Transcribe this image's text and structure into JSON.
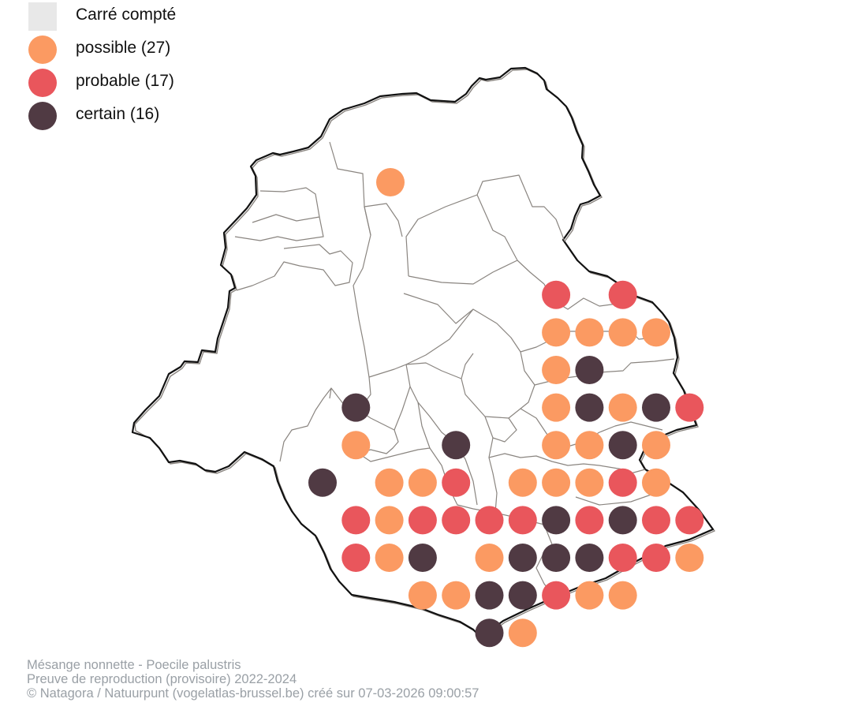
{
  "colors": {
    "counted_square": "#e8e8e8",
    "possible": "#fb9a62",
    "probable": "#e9565c",
    "certain": "#503a43",
    "border": "#111111",
    "commune_lines": "#8a8580"
  },
  "legend": [
    {
      "key": "counted",
      "label": "Carré compté",
      "shape": "square",
      "color": "#e8e8e8"
    },
    {
      "key": "possible",
      "label": "possible (27)",
      "shape": "circle",
      "color": "#fb9a62"
    },
    {
      "key": "probable",
      "label": "probable (17)",
      "shape": "circle",
      "color": "#e9565c"
    },
    {
      "key": "certain",
      "label": "certain (16)",
      "shape": "circle",
      "color": "#503a43"
    }
  ],
  "caption": {
    "species": "Mésange nonnette - Poecile palustris",
    "subtitle": "Preuve de reproduction (provisoire) 2022-2024",
    "credit": "© Natagora / Natuurpunt (vogelatlas-brussel.be) créé sur 07-03-2026 09:00:57"
  },
  "grid_records": [
    {
      "row": 0,
      "col": 2,
      "status": "possible"
    },
    {
      "row": 3,
      "col": 7,
      "status": "probable"
    },
    {
      "row": 3,
      "col": 9,
      "status": "probable"
    },
    {
      "row": 4,
      "col": 7,
      "status": "possible"
    },
    {
      "row": 4,
      "col": 8,
      "status": "possible"
    },
    {
      "row": 4,
      "col": 9,
      "status": "possible"
    },
    {
      "row": 4,
      "col": 10,
      "status": "possible"
    },
    {
      "row": 5,
      "col": 7,
      "status": "possible"
    },
    {
      "row": 5,
      "col": 8,
      "status": "certain"
    },
    {
      "row": 6,
      "col": 1,
      "status": "certain"
    },
    {
      "row": 6,
      "col": 7,
      "status": "possible"
    },
    {
      "row": 6,
      "col": 8,
      "status": "certain"
    },
    {
      "row": 6,
      "col": 9,
      "status": "possible"
    },
    {
      "row": 6,
      "col": 10,
      "status": "certain"
    },
    {
      "row": 6,
      "col": 11,
      "status": "probable"
    },
    {
      "row": 7,
      "col": 1,
      "status": "possible"
    },
    {
      "row": 7,
      "col": 4,
      "status": "certain"
    },
    {
      "row": 7,
      "col": 7,
      "status": "possible"
    },
    {
      "row": 7,
      "col": 8,
      "status": "possible"
    },
    {
      "row": 7,
      "col": 9,
      "status": "certain"
    },
    {
      "row": 7,
      "col": 10,
      "status": "possible"
    },
    {
      "row": 8,
      "col": 0,
      "status": "certain"
    },
    {
      "row": 8,
      "col": 2,
      "status": "possible"
    },
    {
      "row": 8,
      "col": 3,
      "status": "possible"
    },
    {
      "row": 8,
      "col": 4,
      "status": "probable"
    },
    {
      "row": 8,
      "col": 6,
      "status": "possible"
    },
    {
      "row": 8,
      "col": 7,
      "status": "possible"
    },
    {
      "row": 8,
      "col": 8,
      "status": "possible"
    },
    {
      "row": 8,
      "col": 9,
      "status": "probable"
    },
    {
      "row": 8,
      "col": 10,
      "status": "possible"
    },
    {
      "row": 9,
      "col": 1,
      "status": "probable"
    },
    {
      "row": 9,
      "col": 2,
      "status": "possible"
    },
    {
      "row": 9,
      "col": 3,
      "status": "probable"
    },
    {
      "row": 9,
      "col": 4,
      "status": "probable"
    },
    {
      "row": 9,
      "col": 5,
      "status": "probable"
    },
    {
      "row": 9,
      "col": 6,
      "status": "probable"
    },
    {
      "row": 9,
      "col": 7,
      "status": "certain"
    },
    {
      "row": 9,
      "col": 8,
      "status": "probable"
    },
    {
      "row": 9,
      "col": 9,
      "status": "certain"
    },
    {
      "row": 9,
      "col": 10,
      "status": "probable"
    },
    {
      "row": 9,
      "col": 11,
      "status": "probable"
    },
    {
      "row": 10,
      "col": 1,
      "status": "probable"
    },
    {
      "row": 10,
      "col": 2,
      "status": "possible"
    },
    {
      "row": 10,
      "col": 3,
      "status": "certain"
    },
    {
      "row": 10,
      "col": 5,
      "status": "possible"
    },
    {
      "row": 10,
      "col": 6,
      "status": "certain"
    },
    {
      "row": 10,
      "col": 7,
      "status": "certain"
    },
    {
      "row": 10,
      "col": 8,
      "status": "certain"
    },
    {
      "row": 10,
      "col": 9,
      "status": "probable"
    },
    {
      "row": 10,
      "col": 10,
      "status": "probable"
    },
    {
      "row": 10,
      "col": 11,
      "status": "possible"
    },
    {
      "row": 11,
      "col": 3,
      "status": "possible"
    },
    {
      "row": 11,
      "col": 4,
      "status": "possible"
    },
    {
      "row": 11,
      "col": 5,
      "status": "certain"
    },
    {
      "row": 11,
      "col": 6,
      "status": "certain"
    },
    {
      "row": 11,
      "col": 7,
      "status": "probable"
    },
    {
      "row": 11,
      "col": 8,
      "status": "possible"
    },
    {
      "row": 11,
      "col": 9,
      "status": "possible"
    },
    {
      "row": 12,
      "col": 5,
      "status": "certain"
    },
    {
      "row": 12,
      "col": 6,
      "status": "possible"
    }
  ]
}
